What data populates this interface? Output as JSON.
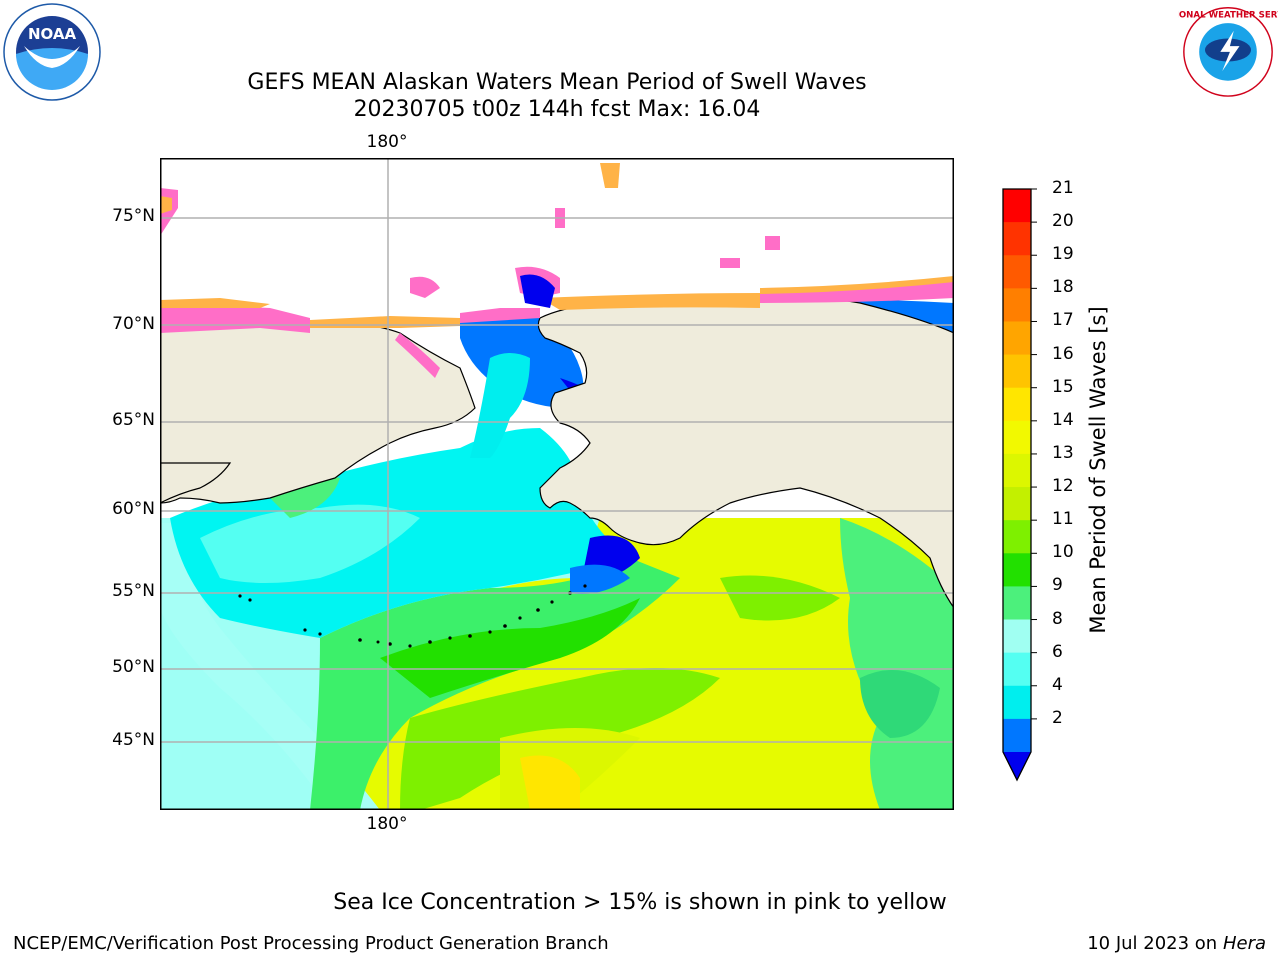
{
  "title": {
    "line1": "GEFS MEAN Alaskan Waters Mean Period of Swell Waves",
    "line2": "20230705 t00z 144h fcst   Max: 16.04"
  },
  "map": {
    "lon_top": "180°",
    "lon_bottom": "180°",
    "lat_labels": [
      "75°N",
      "70°N",
      "65°N",
      "60°N",
      "55°N",
      "50°N",
      "45°N"
    ],
    "colors": {
      "land": "#efecdc",
      "ice_pink": "#ff6ec7",
      "ice_orange": "#ffb347",
      "coast": "#000000",
      "grid": "#b0b0b0"
    }
  },
  "colorbar": {
    "label": "Mean Period of Swell Waves [s]",
    "ticks": [
      "21",
      "20",
      "19",
      "18",
      "17",
      "16",
      "15",
      "14",
      "13",
      "12",
      "11",
      "10",
      "9",
      "8",
      "6",
      "4",
      "2"
    ],
    "colors_top_to_bottom": [
      "#ff0000",
      "#ff3300",
      "#ff5a00",
      "#ff7f00",
      "#ffa500",
      "#ffc400",
      "#ffe600",
      "#f2f900",
      "#dcf700",
      "#c3f000",
      "#7ef000",
      "#22e000",
      "#4cf07c",
      "#a0fff2",
      "#54fff2",
      "#00eeee",
      "#0077ff"
    ],
    "extend_color": "#0000ee"
  },
  "note": "Sea Ice Concentration > 15% is shown in pink to yellow",
  "footer": {
    "left": "NCEP/EMC/Verification Post Processing Product Generation Branch",
    "right_date": "10 Jul 2023 on",
    "right_machine": "Hera"
  },
  "logos": {
    "noaa_text": "NOAA",
    "nws_text": "NATIONAL WEATHER SERVICE"
  }
}
